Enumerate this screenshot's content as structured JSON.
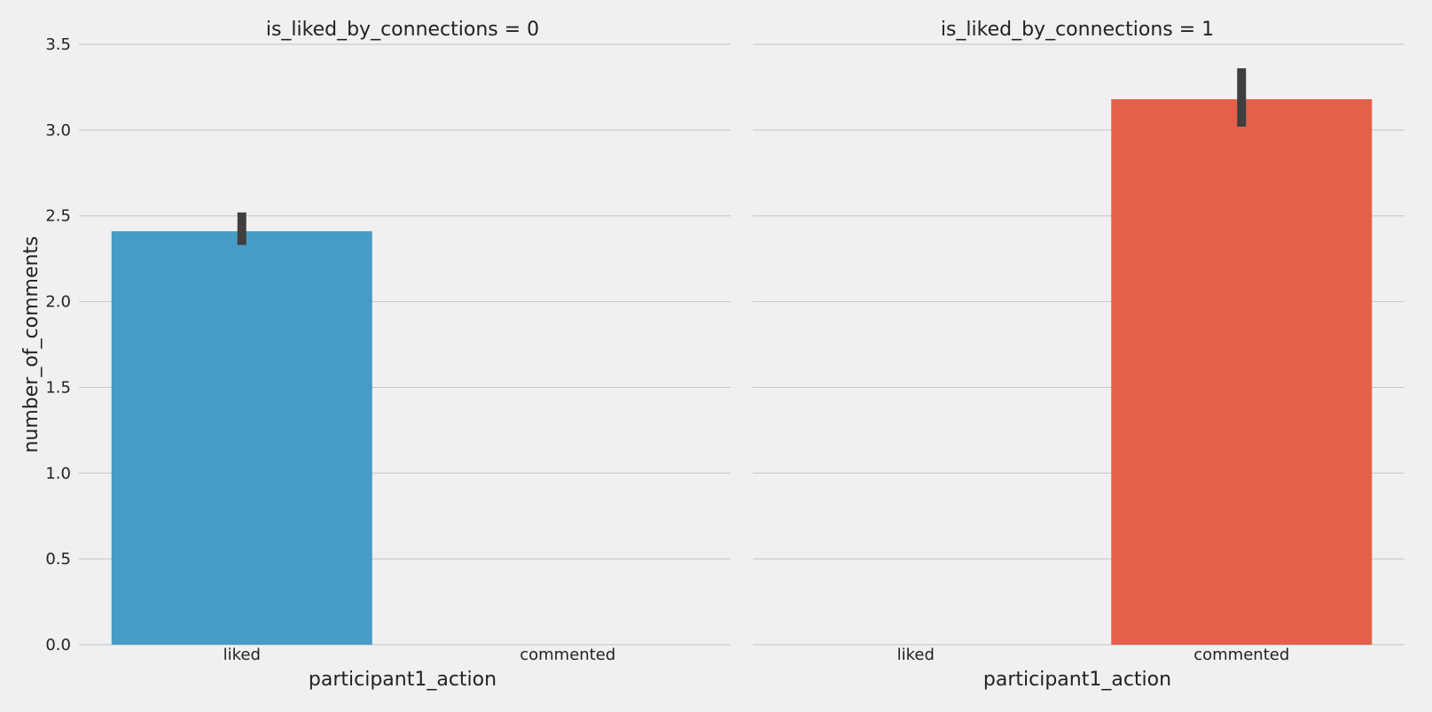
{
  "chart_data": {
    "type": "bar",
    "ylabel": "number_of_comments",
    "xlabel": "participant1_action",
    "categories": [
      "liked",
      "commented"
    ],
    "ylim": [
      0,
      3.5
    ],
    "yticks": [
      0.0,
      0.5,
      1.0,
      1.5,
      2.0,
      2.5,
      3.0,
      3.5
    ],
    "ytick_labels": [
      "0.0",
      "0.5",
      "1.0",
      "1.5",
      "2.0",
      "2.5",
      "3.0",
      "3.5"
    ],
    "grid": "horizontal",
    "facets": [
      {
        "title": "is_liked_by_connections = 0",
        "values": [
          2.41,
          null
        ],
        "error": [
          [
            2.33,
            2.52
          ],
          null
        ]
      },
      {
        "title": "is_liked_by_connections = 1",
        "values": [
          null,
          3.18
        ],
        "error": [
          null,
          [
            3.02,
            3.36
          ]
        ]
      }
    ],
    "colors": {
      "liked": "#479bc7",
      "commented": "#e5604a",
      "errorbar": "#3f3f3f",
      "grid": "#cbcbcb",
      "background": "#f0f0f0"
    }
  }
}
